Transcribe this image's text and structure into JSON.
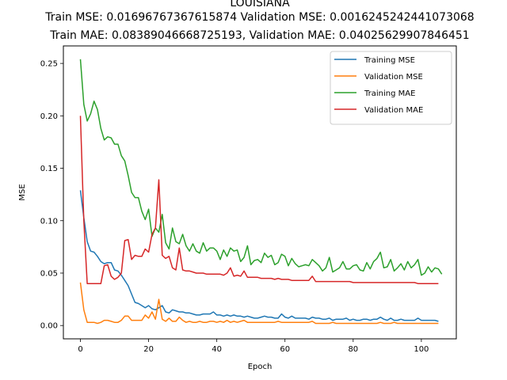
{
  "chart_data": {
    "type": "line",
    "title": "LOUISIANA",
    "subtitle_1": "Train MSE: 0.01696767367615874 Validation MSE: 0.0016245242441073068",
    "subtitle_2": "Train MAE: 0.08389046668725193, Validation MAE: 0.04025629907846451",
    "xlabel": "Epoch",
    "ylabel": "MSE",
    "xlim": [
      -5,
      110.25
    ],
    "ylim": [
      -0.0127,
      0.2667
    ],
    "xticks": [
      0,
      20,
      40,
      60,
      80,
      100
    ],
    "yticks": [
      0.0,
      0.05,
      0.1,
      0.15,
      0.2,
      0.25
    ],
    "ytick_labels": [
      "0.00",
      "0.05",
      "0.10",
      "0.15",
      "0.20",
      "0.25"
    ],
    "legend_position": "upper right",
    "series": [
      {
        "name": "Training MSE",
        "color": "#1f77b4",
        "values": [
          0.129,
          0.103,
          0.08,
          0.071,
          0.07,
          0.066,
          0.061,
          0.059,
          0.06,
          0.06,
          0.053,
          0.052,
          0.048,
          0.043,
          0.038,
          0.03,
          0.022,
          0.021,
          0.019,
          0.017,
          0.019,
          0.016,
          0.015,
          0.017,
          0.019,
          0.013,
          0.012,
          0.015,
          0.014,
          0.013,
          0.013,
          0.012,
          0.012,
          0.011,
          0.01,
          0.01,
          0.011,
          0.011,
          0.011,
          0.013,
          0.01,
          0.01,
          0.009,
          0.01,
          0.009,
          0.01,
          0.009,
          0.009,
          0.008,
          0.009,
          0.008,
          0.007,
          0.007,
          0.008,
          0.009,
          0.008,
          0.008,
          0.007,
          0.007,
          0.011,
          0.008,
          0.007,
          0.009,
          0.007,
          0.007,
          0.007,
          0.007,
          0.006,
          0.008,
          0.007,
          0.007,
          0.006,
          0.006,
          0.007,
          0.005,
          0.006,
          0.006,
          0.006,
          0.007,
          0.005,
          0.006,
          0.005,
          0.005,
          0.006,
          0.006,
          0.005,
          0.006,
          0.006,
          0.008,
          0.006,
          0.005,
          0.007,
          0.005,
          0.005,
          0.006,
          0.005,
          0.005,
          0.005,
          0.005,
          0.007,
          0.005,
          0.005,
          0.005,
          0.005,
          0.005,
          0.004
        ]
      },
      {
        "name": "Validation MSE",
        "color": "#ff7f0e",
        "values": [
          0.041,
          0.015,
          0.003,
          0.003,
          0.003,
          0.002,
          0.003,
          0.005,
          0.005,
          0.004,
          0.003,
          0.003,
          0.005,
          0.009,
          0.009,
          0.005,
          0.005,
          0.005,
          0.005,
          0.01,
          0.007,
          0.013,
          0.006,
          0.025,
          0.006,
          0.004,
          0.007,
          0.004,
          0.004,
          0.008,
          0.005,
          0.003,
          0.004,
          0.003,
          0.003,
          0.004,
          0.003,
          0.003,
          0.004,
          0.004,
          0.003,
          0.004,
          0.003,
          0.005,
          0.003,
          0.004,
          0.003,
          0.004,
          0.005,
          0.003,
          0.003,
          0.003,
          0.003,
          0.003,
          0.003,
          0.003,
          0.003,
          0.003,
          0.004,
          0.003,
          0.003,
          0.003,
          0.003,
          0.003,
          0.003,
          0.003,
          0.003,
          0.003,
          0.004,
          0.002,
          0.002,
          0.002,
          0.002,
          0.002,
          0.003,
          0.002,
          0.002,
          0.002,
          0.002,
          0.002,
          0.002,
          0.002,
          0.002,
          0.002,
          0.002,
          0.002,
          0.002,
          0.002,
          0.003,
          0.002,
          0.002,
          0.002,
          0.003,
          0.002,
          0.002,
          0.002,
          0.002,
          0.002,
          0.002,
          0.002,
          0.002,
          0.002,
          0.002,
          0.002,
          0.002,
          0.002
        ]
      },
      {
        "name": "Training MAE",
        "color": "#2ca02c",
        "values": [
          0.254,
          0.211,
          0.195,
          0.202,
          0.214,
          0.206,
          0.188,
          0.177,
          0.18,
          0.179,
          0.173,
          0.173,
          0.162,
          0.157,
          0.143,
          0.127,
          0.122,
          0.122,
          0.109,
          0.101,
          0.111,
          0.085,
          0.093,
          0.089,
          0.106,
          0.079,
          0.073,
          0.093,
          0.08,
          0.078,
          0.087,
          0.076,
          0.071,
          0.078,
          0.071,
          0.069,
          0.079,
          0.071,
          0.074,
          0.074,
          0.071,
          0.063,
          0.072,
          0.066,
          0.074,
          0.071,
          0.072,
          0.061,
          0.065,
          0.076,
          0.058,
          0.062,
          0.063,
          0.06,
          0.069,
          0.065,
          0.067,
          0.058,
          0.06,
          0.068,
          0.066,
          0.057,
          0.064,
          0.059,
          0.056,
          0.057,
          0.058,
          0.057,
          0.063,
          0.06,
          0.057,
          0.052,
          0.055,
          0.065,
          0.051,
          0.053,
          0.055,
          0.061,
          0.054,
          0.054,
          0.057,
          0.058,
          0.053,
          0.052,
          0.06,
          0.054,
          0.061,
          0.064,
          0.07,
          0.055,
          0.056,
          0.063,
          0.052,
          0.055,
          0.059,
          0.053,
          0.061,
          0.055,
          0.058,
          0.063,
          0.048,
          0.05,
          0.056,
          0.051,
          0.055,
          0.054,
          0.049
        ]
      },
      {
        "name": "Validation MAE",
        "color": "#d62728",
        "values": [
          0.2,
          0.1,
          0.04,
          0.04,
          0.04,
          0.04,
          0.04,
          0.057,
          0.058,
          0.047,
          0.044,
          0.046,
          0.05,
          0.081,
          0.082,
          0.063,
          0.067,
          0.066,
          0.066,
          0.073,
          0.07,
          0.087,
          0.093,
          0.139,
          0.067,
          0.064,
          0.066,
          0.055,
          0.053,
          0.074,
          0.053,
          0.052,
          0.052,
          0.051,
          0.05,
          0.05,
          0.05,
          0.049,
          0.049,
          0.049,
          0.049,
          0.049,
          0.048,
          0.05,
          0.055,
          0.047,
          0.048,
          0.047,
          0.052,
          0.046,
          0.046,
          0.046,
          0.046,
          0.045,
          0.045,
          0.045,
          0.045,
          0.044,
          0.045,
          0.044,
          0.044,
          0.044,
          0.043,
          0.043,
          0.043,
          0.043,
          0.043,
          0.043,
          0.047,
          0.042,
          0.042,
          0.042,
          0.042,
          0.042,
          0.042,
          0.042,
          0.042,
          0.042,
          0.042,
          0.042,
          0.041,
          0.041,
          0.041,
          0.041,
          0.041,
          0.041,
          0.041,
          0.041,
          0.041,
          0.041,
          0.041,
          0.041,
          0.041,
          0.041,
          0.041,
          0.041,
          0.041,
          0.041,
          0.041,
          0.04,
          0.04,
          0.04,
          0.04,
          0.04,
          0.04,
          0.04
        ]
      }
    ]
  }
}
